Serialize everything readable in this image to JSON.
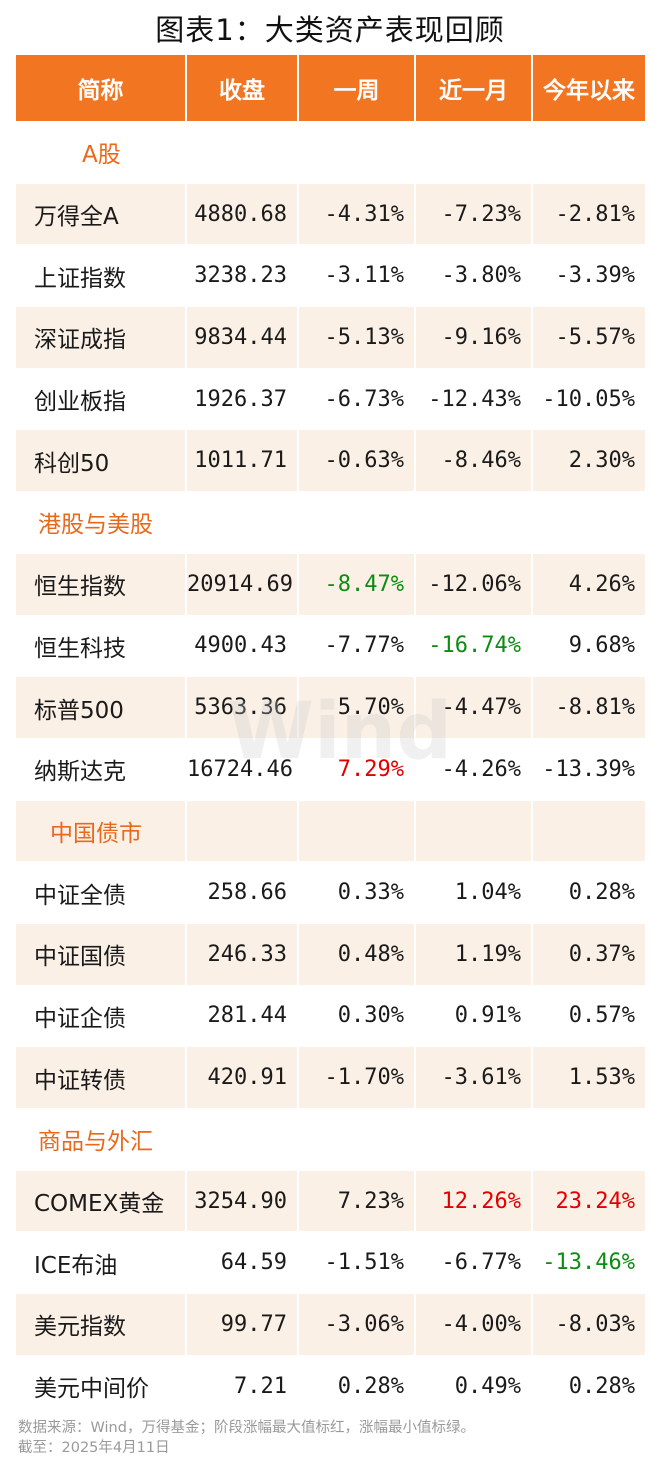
{
  "title": "图表1：大类资产表现回顾",
  "headers": [
    "简称",
    "收盘",
    "一周",
    "近一月",
    "今年以来"
  ],
  "colors": {
    "header_bg": "#f27522",
    "section_text": "#e8691c",
    "max_red": "#e00000",
    "min_green": "#0d8c12",
    "row_shade": "#faf0e6"
  },
  "sections": [
    {
      "name": "A股",
      "rows": [
        {
          "name": "万得全A",
          "close": "4880.68",
          "week": "-4.31%",
          "month": "-7.23%",
          "ytd": "-2.81%"
        },
        {
          "name": "上证指数",
          "close": "3238.23",
          "week": "-3.11%",
          "month": "-3.80%",
          "ytd": "-3.39%"
        },
        {
          "name": "深证成指",
          "close": "9834.44",
          "week": "-5.13%",
          "month": "-9.16%",
          "ytd": "-5.57%"
        },
        {
          "name": "创业板指",
          "close": "1926.37",
          "week": "-6.73%",
          "month": "-12.43%",
          "ytd": "-10.05%"
        },
        {
          "name": "科创50",
          "close": "1011.71",
          "week": "-0.63%",
          "month": "-8.46%",
          "ytd": "2.30%"
        }
      ]
    },
    {
      "name": "港股与美股",
      "rows": [
        {
          "name": "恒生指数",
          "close": "20914.69",
          "week": "-8.47%",
          "month": "-12.06%",
          "ytd": "4.26%"
        },
        {
          "name": "恒生科技",
          "close": "4900.43",
          "week": "-7.77%",
          "month": "-16.74%",
          "ytd": "9.68%"
        },
        {
          "name": "标普500",
          "close": "5363.36",
          "week": "5.70%",
          "month": "-4.47%",
          "ytd": "-8.81%"
        },
        {
          "name": "纳斯达克",
          "close": "16724.46",
          "week": "7.29%",
          "month": "-4.26%",
          "ytd": "-13.39%"
        }
      ]
    },
    {
      "name": "中国债市",
      "rows": [
        {
          "name": "中证全债",
          "close": "258.66",
          "week": "0.33%",
          "month": "1.04%",
          "ytd": "0.28%"
        },
        {
          "name": "中证国债",
          "close": "246.33",
          "week": "0.48%",
          "month": "1.19%",
          "ytd": "0.37%"
        },
        {
          "name": "中证企债",
          "close": "281.44",
          "week": "0.30%",
          "month": "0.91%",
          "ytd": "0.57%"
        },
        {
          "name": "中证转债",
          "close": "420.91",
          "week": "-1.70%",
          "month": "-3.61%",
          "ytd": "1.53%"
        }
      ]
    },
    {
      "name": "商品与外汇",
      "rows": [
        {
          "name": "COMEX黄金",
          "close": "3254.90",
          "week": "7.23%",
          "month": "12.26%",
          "ytd": "23.24%"
        },
        {
          "name": "ICE布油",
          "close": "64.59",
          "week": "-1.51%",
          "month": "-6.77%",
          "ytd": "-13.46%"
        },
        {
          "name": "美元指数",
          "close": "99.77",
          "week": "-3.06%",
          "month": "-4.00%",
          "ytd": "-8.03%"
        },
        {
          "name": "美元中间价",
          "close": "7.21",
          "week": "0.28%",
          "month": "0.49%",
          "ytd": "0.28%"
        }
      ]
    }
  ],
  "watermark": "Wind",
  "source_note": "数据来源：Wind，万得基金；阶段涨幅最大值标红，涨幅最小值标绿。",
  "date_note": "截至：2025年4月11日"
}
